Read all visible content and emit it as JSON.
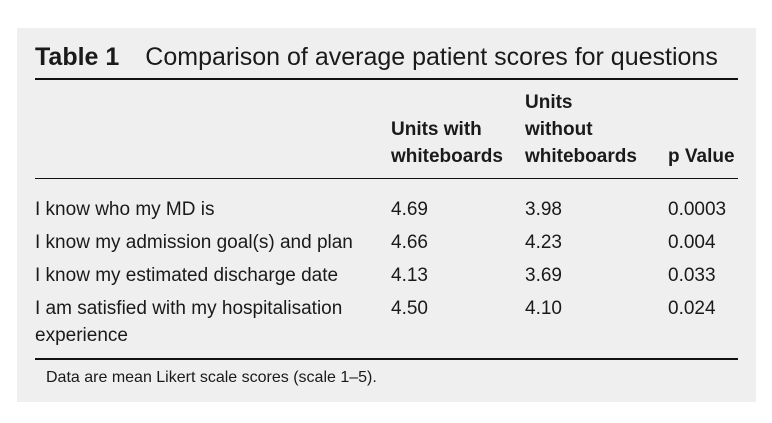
{
  "table": {
    "label": "Table 1",
    "caption": "Comparison of average patient scores for questions",
    "headers": {
      "with": [
        "Units with",
        "whiteboards"
      ],
      "without": [
        "Units",
        "without",
        "whiteboards"
      ],
      "p": "p Value"
    },
    "rows": [
      {
        "question": "I know who my MD is",
        "with": "4.69",
        "without": "3.98",
        "p": "0.0003"
      },
      {
        "question": "I know my admission goal(s) and plan",
        "with": "4.66",
        "without": "4.23",
        "p": "0.004"
      },
      {
        "question": "I know my estimated discharge date",
        "with": "4.13",
        "without": "3.69",
        "p": "0.033"
      },
      {
        "question": "I am satisfied with my hospitalisation experience",
        "with": "4.50",
        "without": "4.10",
        "p": "0.024"
      }
    ],
    "footnote": "Data are mean Likert scale scores (scale 1–5)."
  }
}
